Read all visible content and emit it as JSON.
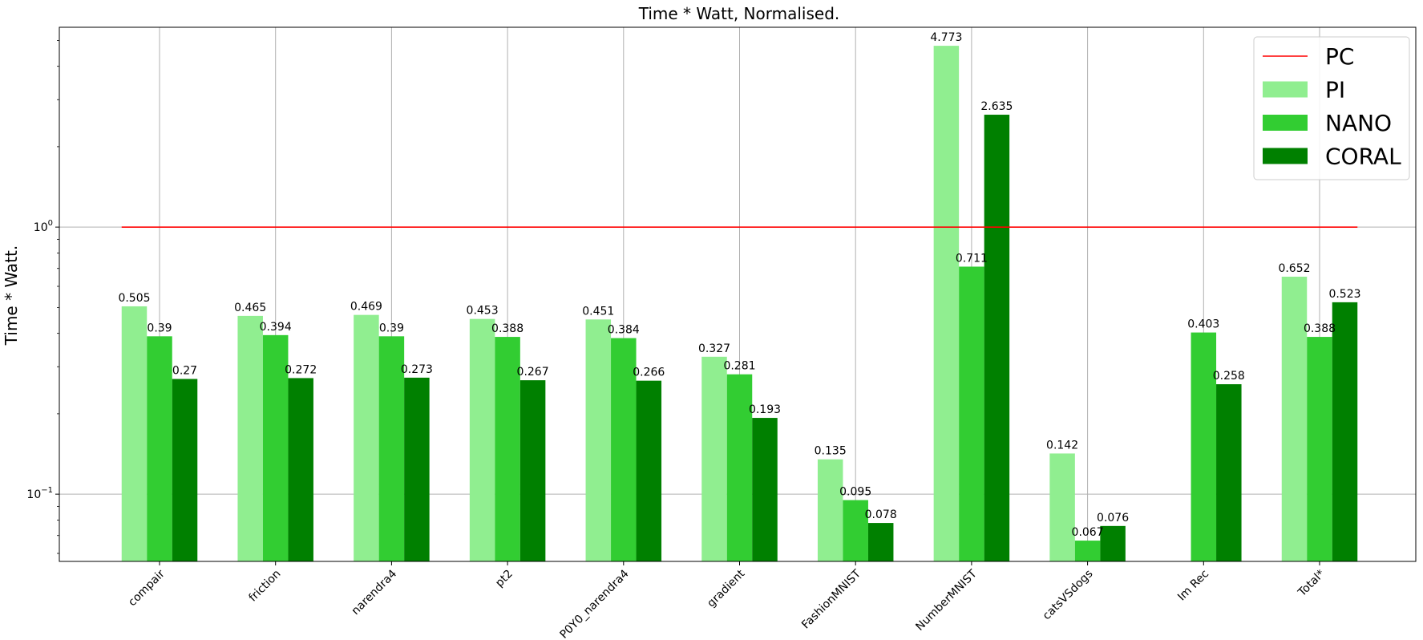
{
  "chart_data": {
    "type": "bar",
    "title": "Time * Watt, Normalised.",
    "xlabel": "",
    "ylabel": "Time * Watt.",
    "yscale": "log",
    "ylim": [
      0.056,
      5.6
    ],
    "y_ticks": [
      {
        "value": 0.1,
        "base": "10",
        "exp": "−1"
      },
      {
        "value": 1,
        "base": "10",
        "exp": "0"
      }
    ],
    "grid": true,
    "legend_position": "top-right",
    "categories": [
      "compair",
      "friction",
      "narendra4",
      "pt2",
      "P0Y0_narendra4",
      "gradient",
      "FashionMNIST",
      "NumberMNIST",
      "catsVSdogs",
      "Im Rec",
      "Total*"
    ],
    "reference_line": {
      "name": "PC",
      "value": 1.0,
      "color": "#ff0000"
    },
    "series": [
      {
        "name": "PI",
        "color": "#90ee90",
        "values": [
          0.505,
          0.465,
          0.469,
          0.453,
          0.451,
          0.327,
          0.135,
          4.773,
          0.142,
          null,
          0.652
        ],
        "labels": [
          "0.505",
          "0.465",
          "0.469",
          "0.453",
          "0.451",
          "0.327",
          "0.135",
          "4.773",
          "0.142",
          null,
          "0.652"
        ]
      },
      {
        "name": "NANO",
        "color": "#32cd32",
        "values": [
          0.39,
          0.394,
          0.39,
          0.388,
          0.384,
          0.281,
          0.095,
          0.711,
          0.067,
          0.403,
          0.388
        ],
        "labels": [
          "0.39",
          "0.394",
          "0.39",
          "0.388",
          "0.384",
          "0.281",
          "0.095",
          "0.711",
          "0.067",
          "0.403",
          "0.388"
        ]
      },
      {
        "name": "CORAL",
        "color": "#008000",
        "values": [
          0.27,
          0.272,
          0.273,
          0.267,
          0.266,
          0.193,
          0.078,
          2.635,
          0.076,
          0.258,
          0.523
        ],
        "labels": [
          "0.27",
          "0.272",
          "0.273",
          "0.267",
          "0.266",
          "0.193",
          "0.078",
          "2.635",
          "0.076",
          "0.258",
          "0.523"
        ]
      }
    ]
  }
}
